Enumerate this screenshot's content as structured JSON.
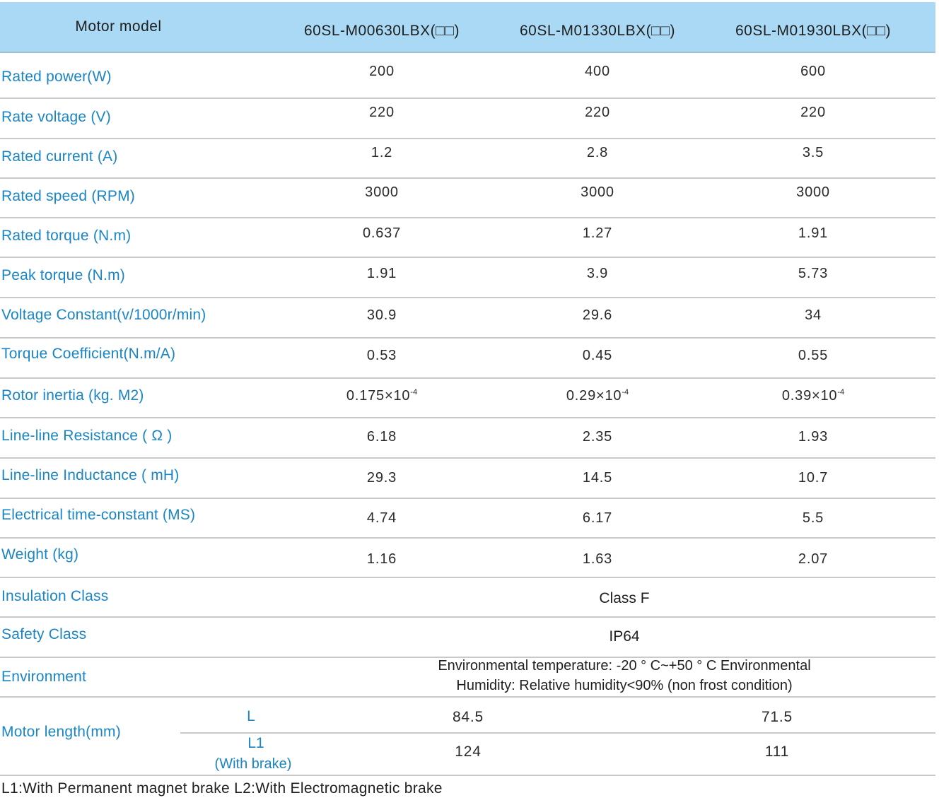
{
  "header": {
    "label": "Motor model",
    "models": [
      "60SL-M00630LBX(□□)",
      "60SL-M01330LBX(□□)",
      "60SL-M01930LBX(□□)"
    ]
  },
  "rows": [
    {
      "label": "Rated power(W)",
      "values": [
        "200",
        "400",
        "600"
      ]
    },
    {
      "label": "Rate voltage (V)",
      "values": [
        "220",
        "220",
        "220"
      ]
    },
    {
      "label": "Rated current (A)",
      "values": [
        "1.2",
        "2.8",
        "3.5"
      ]
    },
    {
      "label": "Rated speed (RPM)",
      "values": [
        "3000",
        "3000",
        "3000"
      ]
    },
    {
      "label": "Rated torque (N.m)",
      "values": [
        "0.637",
        "1.27",
        "1.91"
      ]
    },
    {
      "label": "Peak torque (N.m)",
      "values": [
        "1.91",
        "3.9",
        "5.73"
      ]
    },
    {
      "label": "Voltage Constant(v/1000r/min)",
      "values": [
        "30.9",
        "29.6",
        "34"
      ]
    },
    {
      "label": "Torque Coefficient(N.m/A)",
      "values": [
        "0.53",
        "0.45",
        "0.55"
      ]
    }
  ],
  "inertia": {
    "label": "Rotor inertia (kg. M2)",
    "values": [
      "0.175×10",
      "0.29×10",
      "0.39×10"
    ],
    "exponent": "-4"
  },
  "rows2": [
    {
      "label": "Line-line Resistance ( Ω )",
      "values": [
        "6.18",
        "2.35",
        "1.93"
      ]
    },
    {
      "label": "Line-line Inductance ( mH)",
      "values": [
        "29.3",
        "14.5",
        "10.7"
      ]
    },
    {
      "label": "Electrical time-constant (MS)",
      "values": [
        "4.74",
        "6.17",
        "5.5"
      ]
    },
    {
      "label": "Weight (kg)",
      "values": [
        "1.16",
        "1.63",
        "2.07"
      ]
    }
  ],
  "insulation": {
    "label": "Insulation Class",
    "value": "Class F"
  },
  "safety": {
    "label": "Safety Class",
    "value": "IP64"
  },
  "environment": {
    "label": "Environment",
    "line1": "Environmental temperature: -20 ° C~+50 ° C Environmental",
    "line2": "Humidity: Relative humidity<90% (non frost condition)"
  },
  "motor_length": {
    "label": "Motor length(mm)",
    "L_label": "L",
    "L1_label": "L1",
    "L1_note": "(With brake)",
    "L_values": [
      "84.5",
      "71.5"
    ],
    "L1_values": [
      "124",
      "111"
    ]
  },
  "footnote": "L1:With Permanent magnet brake  L2:With Electromagnetic brake"
}
